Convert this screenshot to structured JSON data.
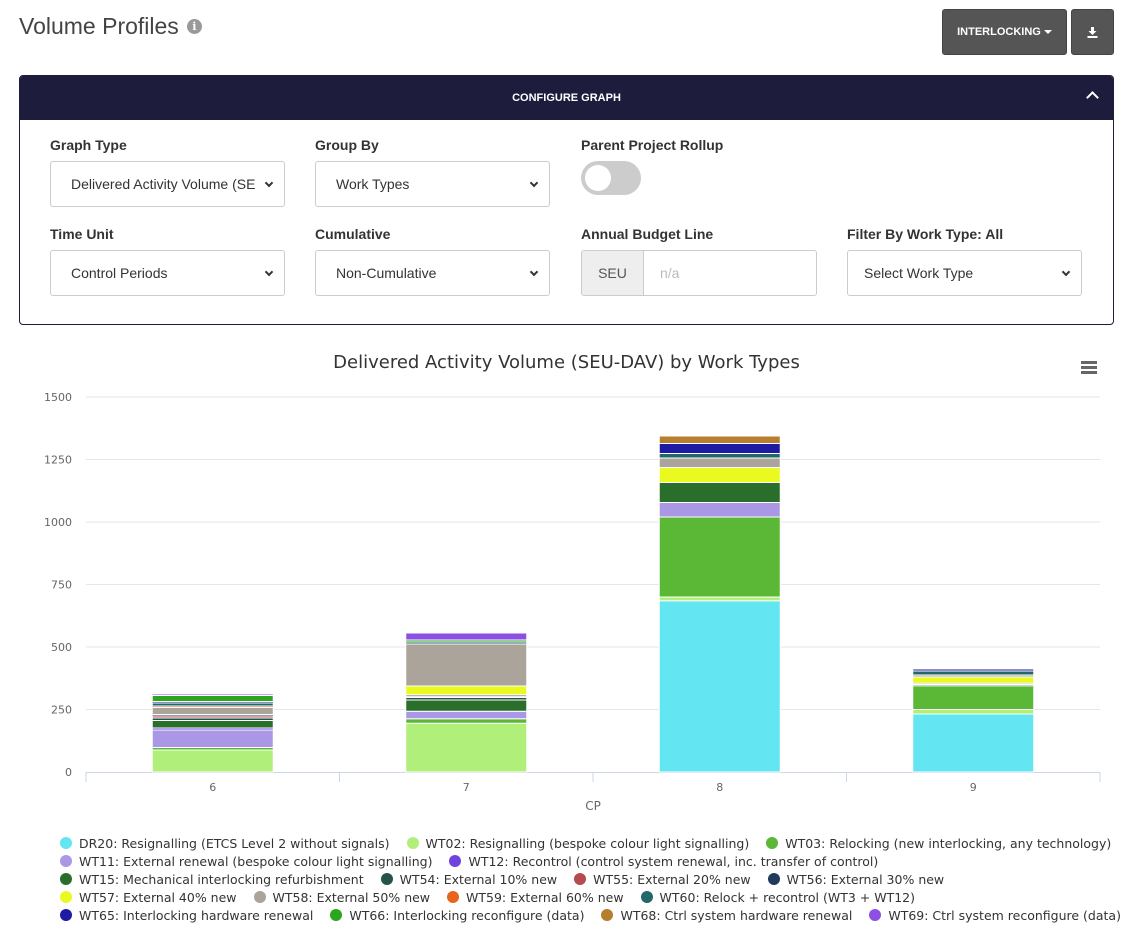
{
  "page": {
    "title": "Volume Profiles"
  },
  "toolbar": {
    "interlocking_label": "INTERLOCKING"
  },
  "panel": {
    "header": "CONFIGURE GRAPH",
    "graph_type": {
      "label": "Graph Type",
      "value": "Delivered Activity Volume (SEU-DAV)"
    },
    "group_by": {
      "label": "Group By",
      "value": "Work Types"
    },
    "rollup": {
      "label": "Parent Project Rollup"
    },
    "time_unit": {
      "label": "Time Unit",
      "value": "Control Periods"
    },
    "cumulative": {
      "label": "Cumulative",
      "value": "Non-Cumulative"
    },
    "budget": {
      "label": "Annual Budget Line",
      "addon": "SEU",
      "placeholder": "n/a"
    },
    "filter": {
      "label": "Filter By Work Type: All",
      "value": "Select Work Type"
    }
  },
  "chart_data": {
    "type": "bar",
    "stacked": true,
    "title": "Delivered Activity Volume (SEU-DAV) by Work Types",
    "xlabel": "CP",
    "ylabel": "",
    "ylim": [
      0,
      1500
    ],
    "yticks": [
      0,
      250,
      500,
      750,
      1000,
      1250,
      1500
    ],
    "categories": [
      "6",
      "7",
      "8",
      "9"
    ],
    "series": [
      {
        "name": "DR20: Resignalling (ETCS Level 2 without signals)",
        "color": "#63e6f2",
        "values": [
          0,
          0,
          685,
          232
        ]
      },
      {
        "name": "WT02: Resignalling (bespoke colour light signalling)",
        "color": "#b1ef7b",
        "values": [
          88,
          195,
          15,
          18
        ]
      },
      {
        "name": "WT03: Relocking (new interlocking, any technology)",
        "color": "#5bb837",
        "values": [
          10,
          18,
          320,
          95
        ]
      },
      {
        "name": "WT11: External renewal (bespoke colour light signalling)",
        "color": "#aa97e6",
        "values": [
          70,
          30,
          58,
          0
        ]
      },
      {
        "name": "WT12: Recontrol (control system renewal, inc. transfer of control)",
        "color": "#6e43e0",
        "values": [
          8,
          0,
          0,
          0
        ]
      },
      {
        "name": "WT15: Mechanical interlocking refurbishment",
        "color": "#2a6e2b",
        "values": [
          30,
          45,
          80,
          0
        ]
      },
      {
        "name": "WT54: External 10% new",
        "color": "#255249",
        "values": [
          10,
          10,
          0,
          5
        ]
      },
      {
        "name": "WT55: External 20% new",
        "color": "#b54a50",
        "values": [
          8,
          5,
          0,
          0
        ]
      },
      {
        "name": "WT56: External 30% new",
        "color": "#203a5c",
        "values": [
          6,
          6,
          0,
          5
        ]
      },
      {
        "name": "WT57: External 40% new",
        "color": "#eafa21",
        "values": [
          0,
          35,
          60,
          25
        ]
      },
      {
        "name": "WT58: External 50% new",
        "color": "#aaa49b",
        "values": [
          28,
          168,
          38,
          8
        ]
      },
      {
        "name": "WT59: External 60% new",
        "color": "#e8631e",
        "values": [
          6,
          0,
          0,
          0
        ]
      },
      {
        "name": "WT60: Relock + recontrol (WT3 + WT12)",
        "color": "#23676b",
        "values": [
          12,
          8,
          18,
          16
        ]
      },
      {
        "name": "WT65: Interlocking hardware renewal",
        "color": "#1d1aa3",
        "values": [
          6,
          0,
          40,
          8
        ]
      },
      {
        "name": "WT66: Interlocking reconfigure (data)",
        "color": "#2da61f",
        "values": [
          24,
          8,
          0,
          0
        ]
      },
      {
        "name": "WT68: Ctrl system hardware renewal",
        "color": "#b67e2d",
        "values": [
          0,
          0,
          30,
          0
        ]
      },
      {
        "name": "WT69: Ctrl system reconfigure (data)",
        "color": "#8e4fe3",
        "values": [
          6,
          28,
          0,
          0
        ]
      }
    ],
    "legend_position": "bottom"
  }
}
